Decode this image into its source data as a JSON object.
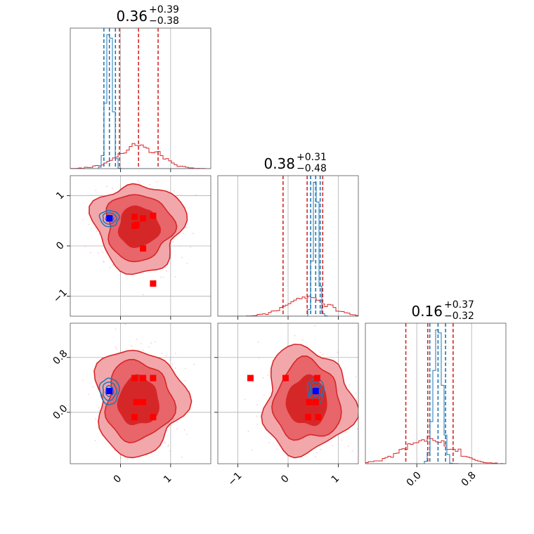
{
  "chart_data": {
    "type": "corner",
    "colors": {
      "red": "#d62728",
      "red_mid": "#e8656a",
      "red_light": "#f2a7ab",
      "blue": "#1f77b4",
      "marker_red": "#ff0000",
      "marker_blue": "#0000ff",
      "grid": "#b0b0b0"
    },
    "grid": true,
    "titles": [
      {
        "value": "0.36",
        "plus": "+0.39",
        "minus": "−0.38"
      },
      {
        "value": "0.38",
        "plus": "+0.31",
        "minus": "−0.48"
      },
      {
        "value": "0.16",
        "plus": "+0.37",
        "minus": "−0.32"
      }
    ],
    "axes": [
      {
        "range": [
          -1.0,
          1.8
        ],
        "ticks": [
          0,
          1
        ],
        "tick_labels": [
          "0",
          "1"
        ]
      },
      {
        "range": [
          -1.4,
          1.4
        ],
        "ticks": [
          -1,
          0,
          1
        ],
        "tick_labels": [
          "−1",
          "0",
          "1"
        ]
      },
      {
        "range": [
          -0.75,
          1.3
        ],
        "ticks": [
          0.0,
          0.8
        ],
        "tick_labels": [
          "0.0",
          "0.8"
        ]
      }
    ],
    "quantile_lines": {
      "red": [
        [
          -0.02,
          0.36,
          0.75
        ],
        [
          -0.1,
          0.38,
          0.69
        ],
        [
          -0.16,
          0.16,
          0.53
        ]
      ],
      "blue": [
        [
          -0.33,
          -0.22,
          -0.1
        ],
        [
          0.45,
          0.55,
          0.64
        ],
        [
          0.19,
          0.31,
          0.42
        ]
      ]
    },
    "distributions": {
      "red": {
        "mean": [
          0.36,
          0.38,
          0.16
        ],
        "sd": [
          0.4,
          0.4,
          0.35
        ]
      },
      "blue": {
        "mean": [
          -0.22,
          0.55,
          0.31
        ],
        "sd": [
          0.06,
          0.05,
          0.06
        ]
      }
    },
    "red_points": [
      [
        0.28,
        0.58,
        0.5
      ],
      [
        0.32,
        0.42,
        0.15
      ],
      [
        0.45,
        -0.05,
        0.5
      ],
      [
        0.65,
        -0.75,
        0.5
      ],
      [
        0.28,
        0.4,
        -0.07
      ],
      [
        0.45,
        0.55,
        0.15
      ],
      [
        0.65,
        0.6,
        -0.07
      ]
    ],
    "blue_point": [
      -0.22,
      0.55,
      0.31
    ]
  }
}
